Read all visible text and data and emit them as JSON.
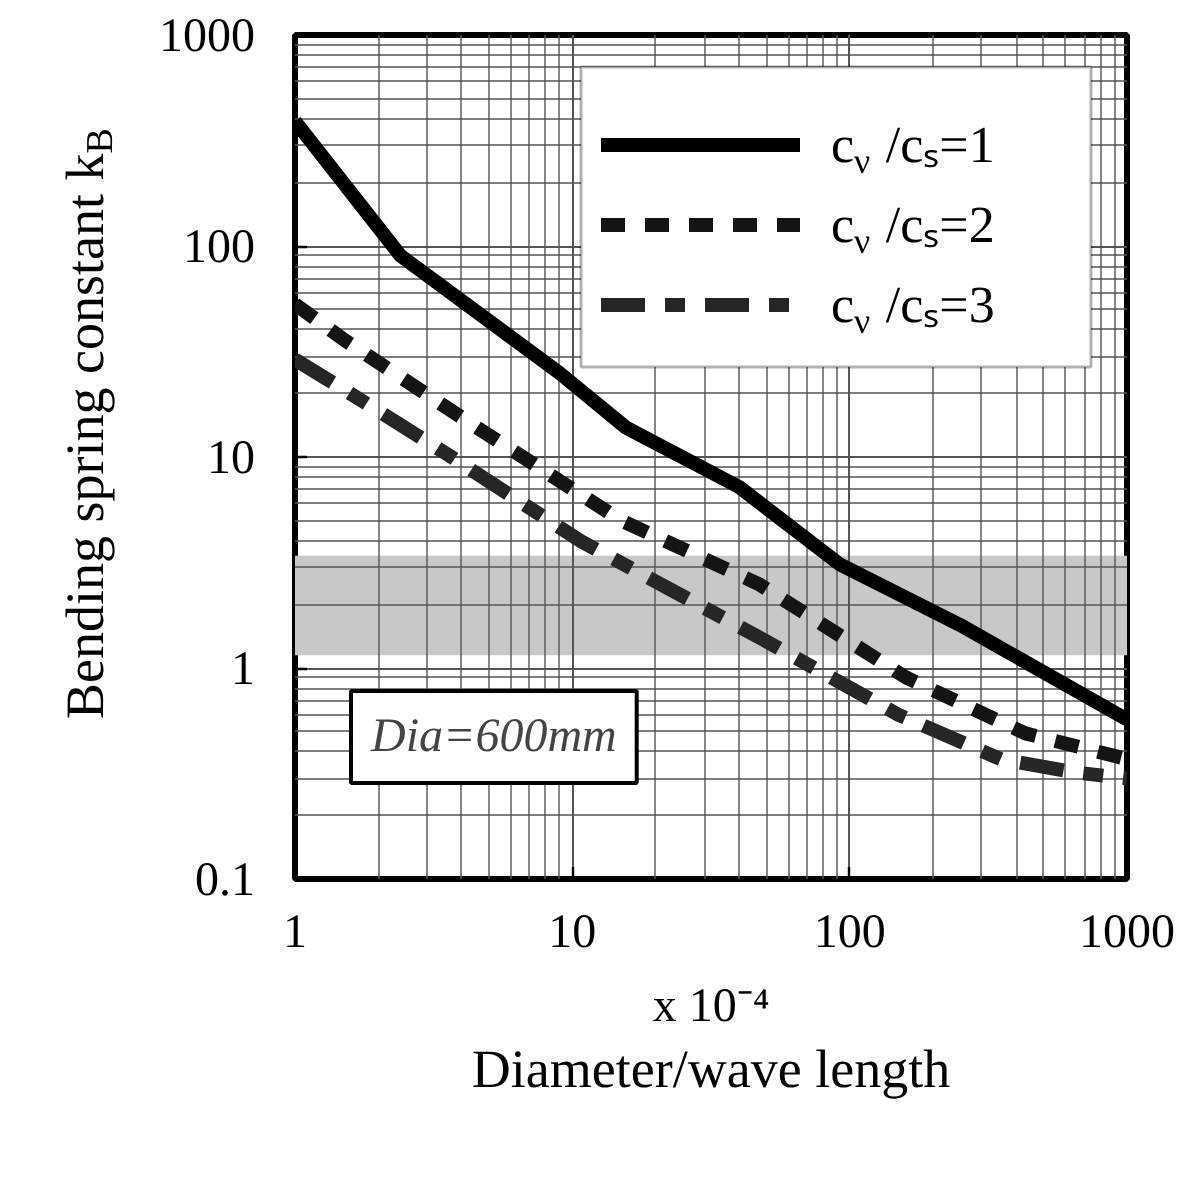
{
  "chart_data": {
    "type": "line",
    "xlabel": "Diameter/wave length",
    "ylabel": "Bending spring constant k$_{B}$",
    "annotations": [
      "x 10⁻⁴",
      "Dia=600mm"
    ],
    "log": "xy",
    "xlim": [
      1,
      1000
    ],
    "xticks": [
      1,
      10,
      100,
      1000
    ],
    "ylim": [
      0.1,
      1000
    ],
    "yticks": [
      0.1,
      1,
      10,
      100,
      1000
    ],
    "grid": true,
    "legend": "top right",
    "bands": [
      {
        "axis": "y",
        "from": 1.15,
        "to": 3.4,
        "color": "#c8c8c8"
      }
    ],
    "series": [
      {
        "name": "c$_{ν}$ /cₛ=1",
        "color": "#000000",
        "line_style": "solid",
        "x": [
          1,
          2.4,
          9,
          15.6,
          40,
          92,
          250,
          1000
        ],
        "values": [
          390,
          90,
          25,
          13.8,
          7.2,
          3.1,
          1.6,
          0.57
        ]
      },
      {
        "name": "c$_{ν}$ /cₛ=2",
        "color": "#141414",
        "line_style": "dashed",
        "x": [
          1,
          1.5,
          4.2,
          15,
          47,
          160,
          430,
          1000
        ],
        "values": [
          53,
          36,
          14.7,
          5,
          2.5,
          0.9,
          0.49,
          0.37
        ]
      },
      {
        "name": "c$_{ν}$ /cₛ=3",
        "color": "#262626",
        "line_style": "dashdot",
        "x": [
          1,
          1.8,
          3.5,
          10.7,
          47,
          150,
          350,
          650,
          1000
        ],
        "values": [
          29,
          18,
          10.4,
          4,
          1.4,
          0.6,
          0.37,
          0.32,
          0.3
        ]
      }
    ]
  }
}
